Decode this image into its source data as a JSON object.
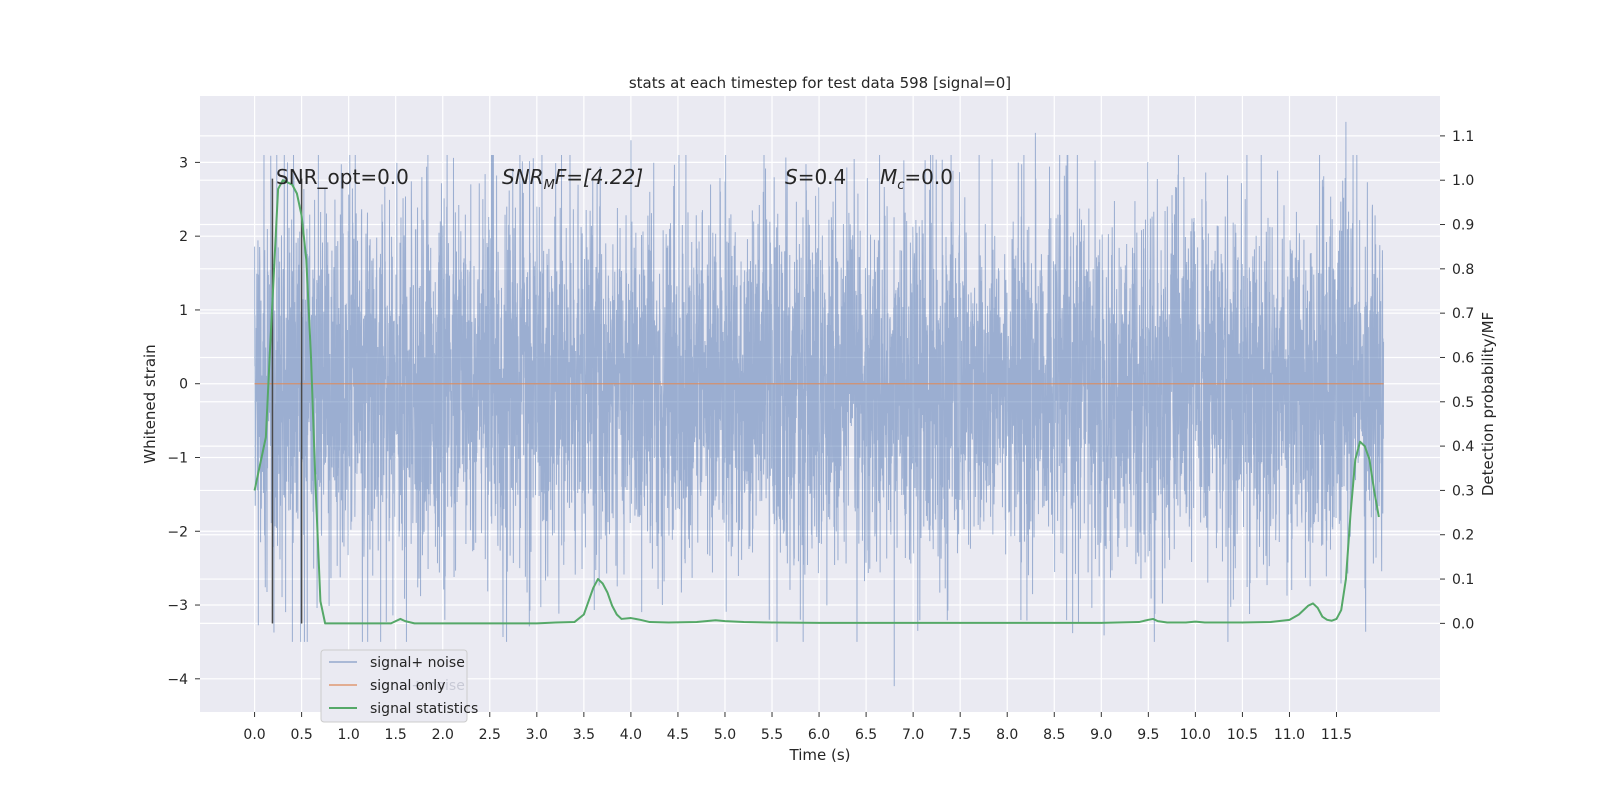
{
  "chart_data": {
    "type": "line",
    "title": "stats at each timestep for test data 598 [signal=0]",
    "xlabel": "Time (s)",
    "ylabel": "Whitened strain",
    "ylabel_right": "Detection probability/MF",
    "xlim": [
      -0.58,
      12.6
    ],
    "ylim": [
      -4.45,
      3.9
    ],
    "ylim_right": [
      -0.2,
      1.19
    ],
    "x_ticks": [
      "0.0",
      "0.5",
      "1.0",
      "1.5",
      "2.0",
      "2.5",
      "3.0",
      "3.5",
      "4.0",
      "4.5",
      "5.0",
      "5.5",
      "6.0",
      "6.5",
      "7.0",
      "7.5",
      "8.0",
      "8.5",
      "9.0",
      "9.5",
      "10.0",
      "10.5",
      "11.0",
      "11.5"
    ],
    "y_ticks": [
      "3",
      "2",
      "1",
      "0",
      "−1",
      "−2",
      "−3",
      "−4"
    ],
    "y_ticks_right": [
      "1.1",
      "1.0",
      "0.9",
      "0.8",
      "0.7",
      "0.6",
      "0.5",
      "0.4",
      "0.3",
      "0.2",
      "0.1",
      "0.0"
    ],
    "grid": true,
    "legend_position": "lower-left",
    "annotations": {
      "snr_opt": "SNR_opt=0.0",
      "snr_mf_main": "SNR",
      "snr_mf_sub": "M",
      "snr_mf_rest": "F=[4.22]",
      "s_main": "S",
      "s_rest": "=0.4",
      "mc_main": "M",
      "mc_sub": "c",
      "mc_rest": "=0.0"
    },
    "legend_ghost_text": "signal+ noise",
    "series": [
      {
        "name": "signal+ noise",
        "color": "#4c72b0",
        "axis": "left",
        "x_range": [
          0.0,
          12.0
        ],
        "typical_range": [
          -1.55,
          1.55
        ],
        "extreme_range": [
          -4.1,
          3.6
        ],
        "peaks": [
          [
            0.35,
            3.0
          ],
          [
            4.0,
            3.3
          ],
          [
            8.3,
            3.4
          ],
          [
            11.6,
            3.55
          ],
          [
            6.8,
            -4.1
          ],
          [
            7.05,
            -3.35
          ],
          [
            5.8,
            -3.2
          ]
        ]
      },
      {
        "name": "signal only",
        "color": "#dd8452",
        "axis": "left",
        "x": [
          0.0,
          12.0
        ],
        "y": [
          0.0,
          0.0
        ]
      },
      {
        "name": "signal statistics",
        "color": "#55a868",
        "axis": "right",
        "x": [
          0.0,
          0.12,
          0.16,
          0.25,
          0.3,
          0.4,
          0.45,
          0.5,
          0.55,
          0.6,
          0.65,
          0.7,
          0.75,
          1.0,
          1.3,
          1.45,
          1.5,
          1.55,
          1.6,
          1.7,
          2.0,
          2.5,
          3.0,
          3.2,
          3.4,
          3.5,
          3.55,
          3.6,
          3.65,
          3.7,
          3.75,
          3.8,
          3.85,
          3.9,
          4.0,
          4.1,
          4.2,
          4.4,
          4.7,
          4.9,
          5.0,
          5.2,
          5.5,
          6.0,
          6.5,
          7.0,
          7.5,
          8.0,
          8.5,
          9.0,
          9.4,
          9.5,
          9.55,
          9.6,
          9.7,
          9.9,
          10.0,
          10.1,
          10.5,
          10.8,
          11.0,
          11.1,
          11.2,
          11.25,
          11.3,
          11.35,
          11.4,
          11.45,
          11.5,
          11.55,
          11.6,
          11.65,
          11.7,
          11.75,
          11.8,
          11.85,
          11.9,
          11.95
        ],
        "y": [
          0.3,
          0.42,
          0.6,
          0.98,
          1.0,
          0.99,
          0.97,
          0.92,
          0.82,
          0.6,
          0.3,
          0.05,
          0.0,
          0.0,
          0.0,
          0.0,
          0.005,
          0.01,
          0.005,
          0.0,
          0.0,
          0.0,
          0.0,
          0.002,
          0.003,
          0.02,
          0.05,
          0.08,
          0.1,
          0.09,
          0.07,
          0.04,
          0.02,
          0.01,
          0.012,
          0.008,
          0.003,
          0.002,
          0.003,
          0.007,
          0.005,
          0.003,
          0.002,
          0.001,
          0.001,
          0.001,
          0.001,
          0.001,
          0.001,
          0.001,
          0.003,
          0.008,
          0.01,
          0.005,
          0.002,
          0.002,
          0.004,
          0.002,
          0.002,
          0.003,
          0.008,
          0.02,
          0.04,
          0.045,
          0.035,
          0.015,
          0.008,
          0.006,
          0.01,
          0.03,
          0.1,
          0.25,
          0.37,
          0.41,
          0.4,
          0.37,
          0.3,
          0.24
        ]
      },
      {
        "name": "",
        "color": "#4a4a4a",
        "axis": "left",
        "type": "vline",
        "x": [
          0.19,
          0.5
        ],
        "y": [
          -3.25,
          2.78
        ]
      }
    ]
  }
}
